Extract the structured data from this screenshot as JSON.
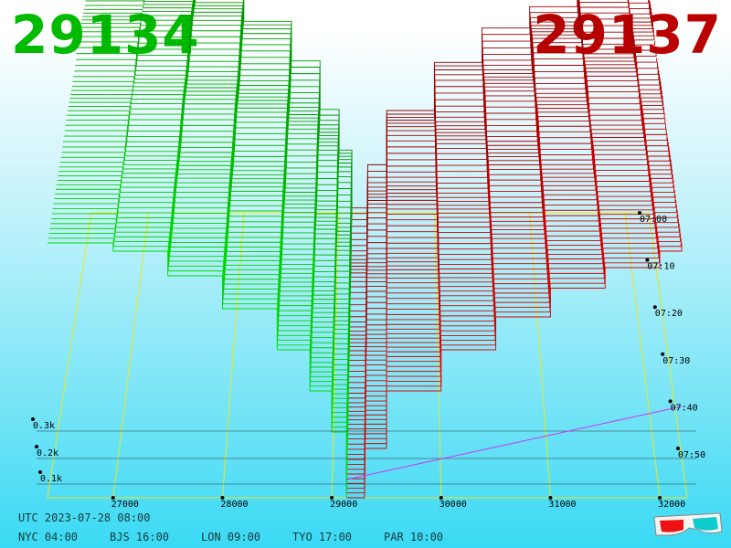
{
  "header": {
    "bid_price": "29134",
    "ask_price": "29137",
    "bid_color": "#00bb00",
    "ask_color": "#bb0000"
  },
  "footer": {
    "utc": "UTC 2023-07-28 08:00",
    "cities": [
      {
        "label": "NYC 04:00"
      },
      {
        "label": "BJS 16:00"
      },
      {
        "label": "LON 09:00"
      },
      {
        "label": "TYO 17:00"
      },
      {
        "label": "PAR 10:00"
      }
    ],
    "glasses_icon": "3d-glasses-icon"
  },
  "chart_data": {
    "type": "area",
    "title": "",
    "subtitle": "",
    "x_ticks": [
      "27000",
      "28000",
      "29000",
      "30000",
      "31000",
      "32000"
    ],
    "x_values": [
      27000,
      28000,
      29000,
      30000,
      31000,
      32000
    ],
    "depth_ticks": [
      "0.1k",
      "0.2k",
      "0.3k"
    ],
    "depth_values": [
      100,
      200,
      300
    ],
    "time_ticks": [
      "07:00",
      "07:10",
      "07:20",
      "07:30",
      "07:40",
      "07:50"
    ],
    "bid_color": "#00bb00",
    "ask_color": "#bb0000",
    "grid_color": "#e8e820",
    "series": [
      {
        "side": "bid",
        "x": [
          26400,
          27000,
          27500,
          28000,
          28500,
          28800,
          29000,
          29134
        ],
        "y": [
          310,
          300,
          270,
          230,
          180,
          130,
          80,
          0
        ]
      },
      {
        "side": "ask",
        "x": [
          29137,
          29300,
          29500,
          30000,
          30500,
          31000,
          31500,
          32000,
          32200
        ],
        "y": [
          0,
          60,
          130,
          180,
          220,
          255,
          280,
          300,
          310
        ]
      }
    ]
  }
}
